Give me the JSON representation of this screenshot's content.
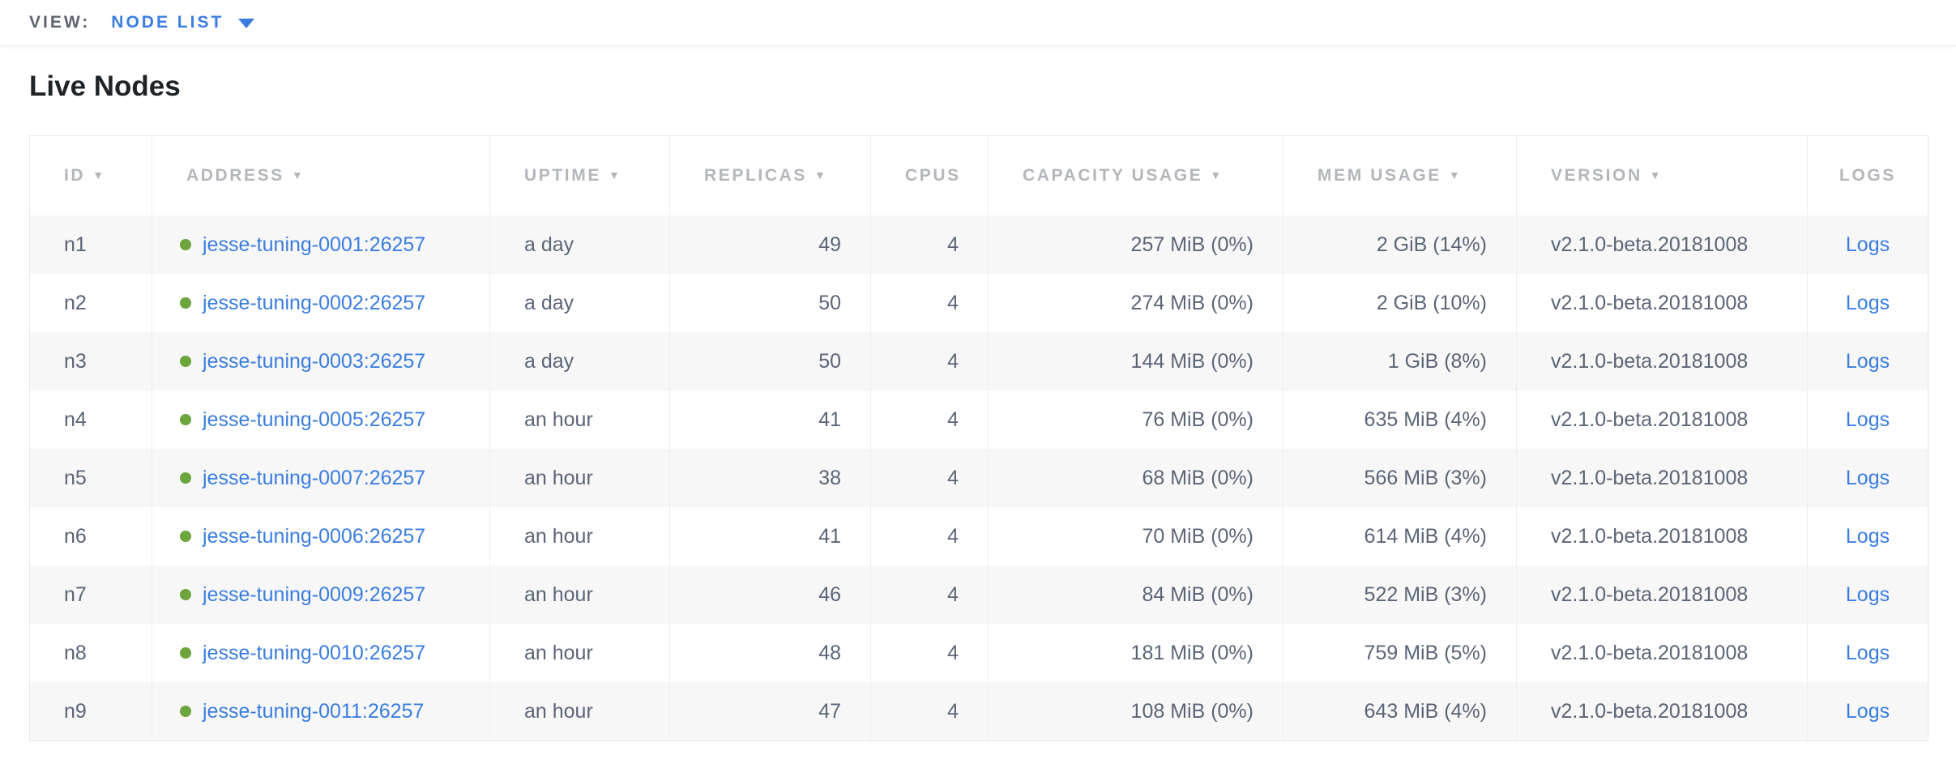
{
  "view_bar": {
    "label": "VIEW:",
    "selected_view": "NODE LIST"
  },
  "page_title": "Live Nodes",
  "icons": {
    "sort_desc": "▼",
    "dropdown_caret": "▼"
  },
  "colors": {
    "link_blue": "#3a7de1",
    "live_node_green": "#6ca53c",
    "header_gray": "#b3b6bb"
  },
  "table": {
    "columns": [
      {
        "key": "id",
        "label": "ID",
        "sortable": true
      },
      {
        "key": "address",
        "label": "ADDRESS",
        "sortable": true
      },
      {
        "key": "uptime",
        "label": "UPTIME",
        "sortable": true
      },
      {
        "key": "replicas",
        "label": "REPLICAS",
        "sortable": true
      },
      {
        "key": "cpus",
        "label": "CPUS",
        "sortable": false
      },
      {
        "key": "capacity",
        "label": "CAPACITY USAGE",
        "sortable": true
      },
      {
        "key": "mem",
        "label": "MEM USAGE",
        "sortable": true
      },
      {
        "key": "version",
        "label": "VERSION",
        "sortable": true
      },
      {
        "key": "logs",
        "label": "LOGS",
        "sortable": false
      }
    ],
    "rows": [
      {
        "id": "n1",
        "status": "live",
        "address": "jesse-tuning-0001:26257",
        "uptime": "a day",
        "replicas": "49",
        "cpus": "4",
        "capacity": "257 MiB (0%)",
        "mem": "2 GiB (14%)",
        "version": "v2.1.0-beta.20181008",
        "logs_label": "Logs"
      },
      {
        "id": "n2",
        "status": "live",
        "address": "jesse-tuning-0002:26257",
        "uptime": "a day",
        "replicas": "50",
        "cpus": "4",
        "capacity": "274 MiB (0%)",
        "mem": "2 GiB (10%)",
        "version": "v2.1.0-beta.20181008",
        "logs_label": "Logs"
      },
      {
        "id": "n3",
        "status": "live",
        "address": "jesse-tuning-0003:26257",
        "uptime": "a day",
        "replicas": "50",
        "cpus": "4",
        "capacity": "144 MiB (0%)",
        "mem": "1 GiB (8%)",
        "version": "v2.1.0-beta.20181008",
        "logs_label": "Logs"
      },
      {
        "id": "n4",
        "status": "live",
        "address": "jesse-tuning-0005:26257",
        "uptime": "an hour",
        "replicas": "41",
        "cpus": "4",
        "capacity": "76 MiB (0%)",
        "mem": "635 MiB (4%)",
        "version": "v2.1.0-beta.20181008",
        "logs_label": "Logs"
      },
      {
        "id": "n5",
        "status": "live",
        "address": "jesse-tuning-0007:26257",
        "uptime": "an hour",
        "replicas": "38",
        "cpus": "4",
        "capacity": "68 MiB (0%)",
        "mem": "566 MiB (3%)",
        "version": "v2.1.0-beta.20181008",
        "logs_label": "Logs"
      },
      {
        "id": "n6",
        "status": "live",
        "address": "jesse-tuning-0006:26257",
        "uptime": "an hour",
        "replicas": "41",
        "cpus": "4",
        "capacity": "70 MiB (0%)",
        "mem": "614 MiB (4%)",
        "version": "v2.1.0-beta.20181008",
        "logs_label": "Logs"
      },
      {
        "id": "n7",
        "status": "live",
        "address": "jesse-tuning-0009:26257",
        "uptime": "an hour",
        "replicas": "46",
        "cpus": "4",
        "capacity": "84 MiB (0%)",
        "mem": "522 MiB (3%)",
        "version": "v2.1.0-beta.20181008",
        "logs_label": "Logs"
      },
      {
        "id": "n8",
        "status": "live",
        "address": "jesse-tuning-0010:26257",
        "uptime": "an hour",
        "replicas": "48",
        "cpus": "4",
        "capacity": "181 MiB (0%)",
        "mem": "759 MiB (5%)",
        "version": "v2.1.0-beta.20181008",
        "logs_label": "Logs"
      },
      {
        "id": "n9",
        "status": "live",
        "address": "jesse-tuning-0011:26257",
        "uptime": "an hour",
        "replicas": "47",
        "cpus": "4",
        "capacity": "108 MiB (0%)",
        "mem": "643 MiB (4%)",
        "version": "v2.1.0-beta.20181008",
        "logs_label": "Logs"
      }
    ]
  }
}
